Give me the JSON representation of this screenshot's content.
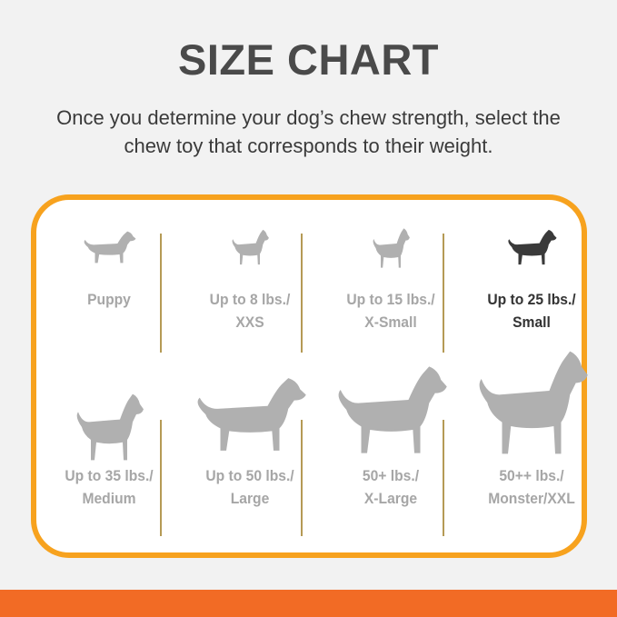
{
  "title": "SIZE CHART",
  "subtitle_line1": "Once you determine your dog’s chew strength, select the",
  "subtitle_line2": "chew toy that corresponds to their weight.",
  "colors": {
    "border": "#f7a21e",
    "band": "#f26b25",
    "inactive": "#a6a6a6",
    "active": "#333333"
  },
  "sizes": [
    {
      "line1": "Puppy",
      "line2": "",
      "icon": "puppy-icon",
      "selected": false
    },
    {
      "line1": "Up to 8 lbs./",
      "line2": "XXS",
      "icon": "chihuahua-icon",
      "selected": false
    },
    {
      "line1": "Up to 15 lbs./",
      "line2": "X-Small",
      "icon": "pinscher-icon",
      "selected": false
    },
    {
      "line1": "Up to 25 lbs./",
      "line2": "Small",
      "icon": "terrier-icon",
      "selected": true
    },
    {
      "line1": "Up to 35 lbs./",
      "line2": "Medium",
      "icon": "beagle-icon",
      "selected": false
    },
    {
      "line1": "Up to 50 lbs./",
      "line2": "Large",
      "icon": "labrador-icon",
      "selected": false
    },
    {
      "line1": "50+ lbs./",
      "line2": "X-Large",
      "icon": "shepherd-icon",
      "selected": false
    },
    {
      "line1": "50++ lbs./",
      "line2": "Monster/XXL",
      "icon": "great-dane-icon",
      "selected": false
    }
  ]
}
